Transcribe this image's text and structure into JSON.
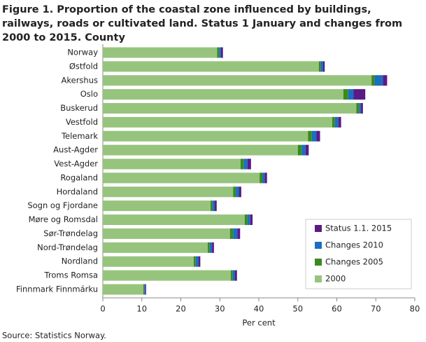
{
  "chart_data": {
    "type": "stacked-barh",
    "title": "Figure 1. Proportion of the coastal zone influenced by buildings, railways, roads or cultivated land. Status 1 January and changes from 2000 to 2015. County",
    "x_label": "Per cent",
    "source": "Source: Statistics Norway.",
    "categories": [
      "Norway",
      "Østfold",
      "Akershus",
      "Oslo",
      "Buskerud",
      "Vestfold",
      "Telemark",
      "Aust-Agder",
      "Vest-Agder",
      "Rogaland",
      "Hordaland",
      "Sogn og Fjordane",
      "Møre og Romsdal",
      "Sør-Trøndelag",
      "Nord-Trøndelag",
      "Nordland",
      "Troms Romsa",
      "Finnmark Finnmárku"
    ],
    "series": [
      {
        "name": "2000",
        "color": "#97c47d",
        "values": [
          29.3,
          55.4,
          68.9,
          61.7,
          65.0,
          58.8,
          52.6,
          50.0,
          35.3,
          40.2,
          33.4,
          27.6,
          36.4,
          32.6,
          26.9,
          23.3,
          32.8,
          10.4
        ]
      },
      {
        "name": "Changes 2005",
        "color": "#3a8a1c",
        "values": [
          0.5,
          0.5,
          0.8,
          1.2,
          0.7,
          0.7,
          1.0,
          1.0,
          0.8,
          0.7,
          0.7,
          0.5,
          0.7,
          0.8,
          0.5,
          0.5,
          0.5,
          0.2
        ]
      },
      {
        "name": "Changes 2010",
        "color": "#1a6fc0",
        "values": [
          0.5,
          0.6,
          2.1,
          1.4,
          0.5,
          0.9,
          1.2,
          1.0,
          1.0,
          0.6,
          0.8,
          0.6,
          0.7,
          1.1,
          0.6,
          0.7,
          0.6,
          0.3
        ]
      },
      {
        "name": "Status 1.1. 2015",
        "color": "#5b1a86",
        "values": [
          0.5,
          0.4,
          1.1,
          3.0,
          0.5,
          0.7,
          0.9,
          0.8,
          0.9,
          0.6,
          0.6,
          0.5,
          0.6,
          0.7,
          0.5,
          0.5,
          0.5,
          0.2
        ]
      }
    ],
    "xlim": [
      0,
      80
    ],
    "xticks": [
      0,
      10,
      20,
      30,
      40,
      50,
      60,
      70,
      80
    ],
    "legend": "lower right"
  }
}
